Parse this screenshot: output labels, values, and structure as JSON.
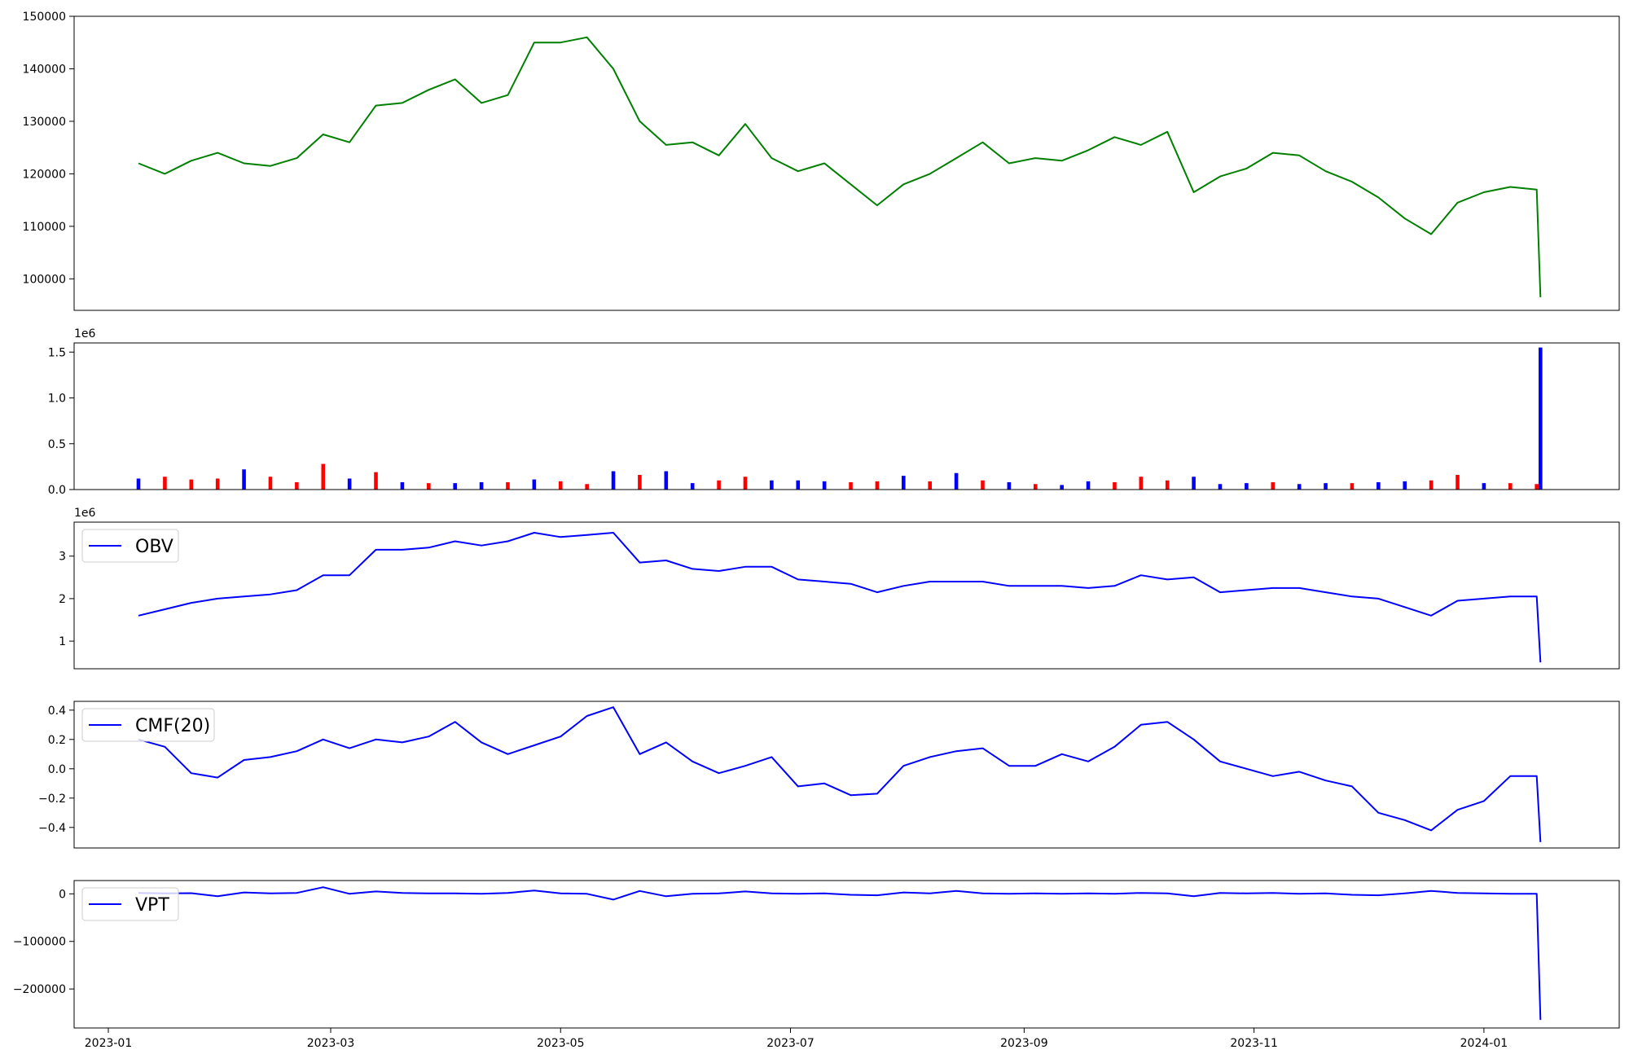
{
  "colors": {
    "price_line": "#008000",
    "indicator_line": "#0000ff",
    "volume_up": "#0000ff",
    "volume_down": "#ff0000",
    "volume_flat": "#000000"
  },
  "chart_data": [
    {
      "type": "line",
      "title": "",
      "xlabel": "",
      "ylabel": "",
      "ylim": [
        94000,
        150000
      ],
      "yticks": [
        100000,
        110000,
        120000,
        130000,
        140000,
        150000
      ],
      "ytick_labels": [
        "100000",
        "110000",
        "120000",
        "130000",
        "140000",
        "150000"
      ],
      "x_tick_labels": [],
      "series": [
        {
          "x": [
            "2023-01-09",
            "2023-01-16",
            "2023-01-23",
            "2023-01-30",
            "2023-02-06",
            "2023-02-13",
            "2023-02-20",
            "2023-02-27",
            "2023-03-06",
            "2023-03-13",
            "2023-03-20",
            "2023-03-27",
            "2023-04-03",
            "2023-04-10",
            "2023-04-17",
            "2023-04-24",
            "2023-05-01",
            "2023-05-08",
            "2023-05-15",
            "2023-05-22",
            "2023-05-29",
            "2023-06-05",
            "2023-06-12",
            "2023-06-19",
            "2023-06-26",
            "2023-07-03",
            "2023-07-10",
            "2023-07-17",
            "2023-07-24",
            "2023-07-31",
            "2023-08-07",
            "2023-08-14",
            "2023-08-21",
            "2023-08-28",
            "2023-09-04",
            "2023-09-11",
            "2023-09-18",
            "2023-09-25",
            "2023-10-02",
            "2023-10-09",
            "2023-10-16",
            "2023-10-23",
            "2023-10-30",
            "2023-11-06",
            "2023-11-13",
            "2023-11-20",
            "2023-11-27",
            "2023-12-04",
            "2023-12-11",
            "2023-12-18",
            "2023-12-25",
            "2024-01-01",
            "2024-01-08",
            "2024-01-15",
            "2024-01-16"
          ],
          "y": [
            122000,
            120000,
            122500,
            124000,
            122000,
            121500,
            123000,
            127500,
            126000,
            133000,
            133500,
            136000,
            138000,
            133500,
            135000,
            145000,
            145000,
            146000,
            140000,
            130000,
            125500,
            126000,
            123500,
            129500,
            123000,
            120500,
            122000,
            118000,
            114000,
            118000,
            120000,
            123000,
            126000,
            122000,
            123000,
            122500,
            124500,
            127000,
            125500,
            128000,
            116500,
            119500,
            121000,
            124000,
            123500,
            120500,
            118500,
            115500,
            111500,
            108500,
            114500,
            116500,
            117500,
            117000,
            96500
          ]
        }
      ]
    },
    {
      "type": "bar",
      "title": "",
      "xlabel": "",
      "ylabel": "",
      "y_exponent_label": "1e6",
      "ylim": [
        0,
        1.6
      ],
      "yticks": [
        0.0,
        0.5,
        1.0,
        1.5
      ],
      "ytick_labels": [
        "0.0",
        "0.5",
        "1.0",
        "1.5"
      ],
      "x_tick_labels": [],
      "series": [
        {
          "x": [
            "2023-01-09",
            "2023-01-16",
            "2023-01-23",
            "2023-01-30",
            "2023-02-06",
            "2023-02-13",
            "2023-02-20",
            "2023-02-27",
            "2023-03-06",
            "2023-03-13",
            "2023-03-20",
            "2023-03-27",
            "2023-04-03",
            "2023-04-10",
            "2023-04-17",
            "2023-04-24",
            "2023-05-01",
            "2023-05-08",
            "2023-05-15",
            "2023-05-22",
            "2023-05-29",
            "2023-06-05",
            "2023-06-12",
            "2023-06-19",
            "2023-06-26",
            "2023-07-03",
            "2023-07-10",
            "2023-07-17",
            "2023-07-24",
            "2023-07-31",
            "2023-08-07",
            "2023-08-14",
            "2023-08-21",
            "2023-08-28",
            "2023-09-04",
            "2023-09-11",
            "2023-09-18",
            "2023-09-25",
            "2023-10-02",
            "2023-10-09",
            "2023-10-16",
            "2023-10-23",
            "2023-10-30",
            "2023-11-06",
            "2023-11-13",
            "2023-11-20",
            "2023-11-27",
            "2023-12-04",
            "2023-12-11",
            "2023-12-18",
            "2023-12-25",
            "2024-01-01",
            "2024-01-08",
            "2024-01-15",
            "2024-01-16"
          ],
          "y": [
            0.12,
            0.14,
            0.11,
            0.12,
            0.22,
            0.14,
            0.08,
            0.28,
            0.12,
            0.19,
            0.08,
            0.07,
            0.07,
            0.08,
            0.08,
            0.11,
            0.09,
            0.06,
            0.2,
            0.16,
            0.2,
            0.07,
            0.1,
            0.14,
            0.1,
            0.1,
            0.09,
            0.08,
            0.09,
            0.15,
            0.09,
            0.18,
            0.1,
            0.08,
            0.06,
            0.05,
            0.09,
            0.08,
            0.14,
            0.1,
            0.14,
            0.06,
            0.07,
            0.08,
            0.06,
            0.07,
            0.07,
            0.08,
            0.09,
            0.1,
            0.16,
            0.07,
            0.07,
            0.06,
            1.55
          ],
          "color_key": [
            "volume_up",
            "volume_down",
            "volume_down",
            "volume_down",
            "volume_up",
            "volume_down",
            "volume_down",
            "volume_down",
            "volume_up",
            "volume_down",
            "volume_up",
            "volume_down",
            "volume_up",
            "volume_up",
            "volume_down",
            "volume_up",
            "volume_down",
            "volume_down",
            "volume_up",
            "volume_down",
            "volume_up",
            "volume_up",
            "volume_down",
            "volume_down",
            "volume_up",
            "volume_up",
            "volume_up",
            "volume_down",
            "volume_down",
            "volume_up",
            "volume_down",
            "volume_up",
            "volume_down",
            "volume_up",
            "volume_down",
            "volume_up",
            "volume_up",
            "volume_down",
            "volume_down",
            "volume_down",
            "volume_up",
            "volume_up",
            "volume_up",
            "volume_down",
            "volume_up",
            "volume_up",
            "volume_down",
            "volume_up",
            "volume_up",
            "volume_down",
            "volume_down",
            "volume_up",
            "volume_down",
            "volume_down",
            "volume_up"
          ]
        }
      ]
    },
    {
      "type": "line",
      "title": "",
      "xlabel": "",
      "ylabel": "",
      "y_exponent_label": "1e6",
      "ylim": [
        0.35,
        3.8
      ],
      "yticks": [
        1,
        2,
        3
      ],
      "ytick_labels": [
        "1",
        "2",
        "3"
      ],
      "x_tick_labels": [],
      "legend": "upper left",
      "series": [
        {
          "name": "OBV",
          "x": [
            "2023-01-09",
            "2023-01-16",
            "2023-01-23",
            "2023-01-30",
            "2023-02-06",
            "2023-02-13",
            "2023-02-20",
            "2023-02-27",
            "2023-03-06",
            "2023-03-13",
            "2023-03-20",
            "2023-03-27",
            "2023-04-03",
            "2023-04-10",
            "2023-04-17",
            "2023-04-24",
            "2023-05-01",
            "2023-05-08",
            "2023-05-15",
            "2023-05-22",
            "2023-05-29",
            "2023-06-05",
            "2023-06-12",
            "2023-06-19",
            "2023-06-26",
            "2023-07-03",
            "2023-07-10",
            "2023-07-17",
            "2023-07-24",
            "2023-07-31",
            "2023-08-07",
            "2023-08-14",
            "2023-08-21",
            "2023-08-28",
            "2023-09-04",
            "2023-09-11",
            "2023-09-18",
            "2023-09-25",
            "2023-10-02",
            "2023-10-09",
            "2023-10-16",
            "2023-10-23",
            "2023-10-30",
            "2023-11-06",
            "2023-11-13",
            "2023-11-20",
            "2023-11-27",
            "2023-12-04",
            "2023-12-11",
            "2023-12-18",
            "2023-12-25",
            "2024-01-01",
            "2024-01-08",
            "2024-01-15",
            "2024-01-16"
          ],
          "y": [
            1.6,
            1.75,
            1.9,
            2.0,
            2.05,
            2.1,
            2.2,
            2.55,
            2.55,
            3.15,
            3.15,
            3.2,
            3.35,
            3.25,
            3.35,
            3.55,
            3.45,
            3.5,
            3.55,
            2.85,
            2.9,
            2.7,
            2.65,
            2.75,
            2.75,
            2.45,
            2.4,
            2.35,
            2.15,
            2.3,
            2.4,
            2.4,
            2.4,
            2.3,
            2.3,
            2.3,
            2.25,
            2.3,
            2.55,
            2.45,
            2.5,
            2.15,
            2.2,
            2.25,
            2.25,
            2.15,
            2.05,
            2.0,
            1.8,
            1.6,
            1.95,
            2.0,
            2.05,
            2.05,
            0.5
          ]
        }
      ]
    },
    {
      "type": "line",
      "title": "",
      "xlabel": "",
      "ylabel": "",
      "ylim": [
        -0.54,
        0.46
      ],
      "yticks": [
        -0.4,
        -0.2,
        0.0,
        0.2,
        0.4
      ],
      "ytick_labels": [
        "−0.4",
        "−0.2",
        "0.0",
        "0.2",
        "0.4"
      ],
      "x_tick_labels": [],
      "legend": "upper left",
      "series": [
        {
          "name": "CMF(20)",
          "x": [
            "2023-01-09",
            "2023-01-16",
            "2023-01-23",
            "2023-01-30",
            "2023-02-06",
            "2023-02-13",
            "2023-02-20",
            "2023-02-27",
            "2023-03-06",
            "2023-03-13",
            "2023-03-20",
            "2023-03-27",
            "2023-04-03",
            "2023-04-10",
            "2023-04-17",
            "2023-04-24",
            "2023-05-01",
            "2023-05-08",
            "2023-05-15",
            "2023-05-22",
            "2023-05-29",
            "2023-06-05",
            "2023-06-12",
            "2023-06-19",
            "2023-06-26",
            "2023-07-03",
            "2023-07-10",
            "2023-07-17",
            "2023-07-24",
            "2023-07-31",
            "2023-08-07",
            "2023-08-14",
            "2023-08-21",
            "2023-08-28",
            "2023-09-04",
            "2023-09-11",
            "2023-09-18",
            "2023-09-25",
            "2023-10-02",
            "2023-10-09",
            "2023-10-16",
            "2023-10-23",
            "2023-10-30",
            "2023-11-06",
            "2023-11-13",
            "2023-11-20",
            "2023-11-27",
            "2023-12-04",
            "2023-12-11",
            "2023-12-18",
            "2023-12-25",
            "2024-01-01",
            "2024-01-08",
            "2024-01-15",
            "2024-01-16"
          ],
          "y": [
            0.2,
            0.15,
            -0.03,
            -0.06,
            0.06,
            0.08,
            0.12,
            0.2,
            0.14,
            0.2,
            0.18,
            0.22,
            0.32,
            0.18,
            0.1,
            0.16,
            0.22,
            0.36,
            0.42,
            0.1,
            0.18,
            0.05,
            -0.03,
            0.02,
            0.08,
            -0.12,
            -0.1,
            -0.18,
            -0.17,
            0.02,
            0.08,
            0.12,
            0.14,
            0.02,
            0.02,
            0.1,
            0.05,
            0.15,
            0.3,
            0.32,
            0.2,
            0.05,
            0.0,
            -0.05,
            -0.02,
            -0.08,
            -0.12,
            -0.3,
            -0.35,
            -0.42,
            -0.28,
            -0.22,
            -0.05,
            -0.05,
            -0.5
          ]
        }
      ]
    },
    {
      "type": "line",
      "title": "",
      "xlabel": "",
      "ylabel": "",
      "ylim": [
        -282000,
        28000
      ],
      "yticks": [
        -200000,
        -100000,
        0
      ],
      "ytick_labels": [
        "−200000",
        "−100000",
        "0"
      ],
      "x_tick_labels": [
        "2023-01",
        "2023-03",
        "2023-05",
        "2023-07",
        "2023-09",
        "2023-11",
        "2024-01"
      ],
      "x_tick_values": [
        "2023-01-01",
        "2023-03-01",
        "2023-05-01",
        "2023-07-01",
        "2023-09-01",
        "2023-11-01",
        "2024-01-01"
      ],
      "legend": "upper left",
      "series": [
        {
          "name": "VPT",
          "x": [
            "2023-01-09",
            "2023-01-16",
            "2023-01-23",
            "2023-01-30",
            "2023-02-06",
            "2023-02-13",
            "2023-02-20",
            "2023-02-27",
            "2023-03-06",
            "2023-03-13",
            "2023-03-20",
            "2023-03-27",
            "2023-04-03",
            "2023-04-10",
            "2023-04-17",
            "2023-04-24",
            "2023-05-01",
            "2023-05-08",
            "2023-05-15",
            "2023-05-22",
            "2023-05-29",
            "2023-06-05",
            "2023-06-12",
            "2023-06-19",
            "2023-06-26",
            "2023-07-03",
            "2023-07-10",
            "2023-07-17",
            "2023-07-24",
            "2023-07-31",
            "2023-08-07",
            "2023-08-14",
            "2023-08-21",
            "2023-08-28",
            "2023-09-04",
            "2023-09-11",
            "2023-09-18",
            "2023-09-25",
            "2023-10-02",
            "2023-10-09",
            "2023-10-16",
            "2023-10-23",
            "2023-10-30",
            "2023-11-06",
            "2023-11-13",
            "2023-11-20",
            "2023-11-27",
            "2023-12-04",
            "2023-12-11",
            "2023-12-18",
            "2023-12-25",
            "2024-01-01",
            "2024-01-08",
            "2024-01-15",
            "2024-01-16"
          ],
          "y": [
            2000,
            1000,
            1500,
            -5000,
            3000,
            1000,
            2000,
            14000,
            0,
            5000,
            2000,
            1000,
            1000,
            0,
            2000,
            7000,
            1000,
            0,
            -12000,
            6000,
            -5000,
            0,
            1000,
            5000,
            1000,
            0,
            1000,
            -2000,
            -3000,
            3000,
            1000,
            6000,
            1000,
            0,
            1000,
            0,
            1000,
            0,
            2000,
            1000,
            -5000,
            2000,
            1000,
            2000,
            0,
            1000,
            -2000,
            -3000,
            1000,
            6000,
            2000,
            1000,
            0,
            0,
            -265000
          ]
        }
      ]
    }
  ]
}
